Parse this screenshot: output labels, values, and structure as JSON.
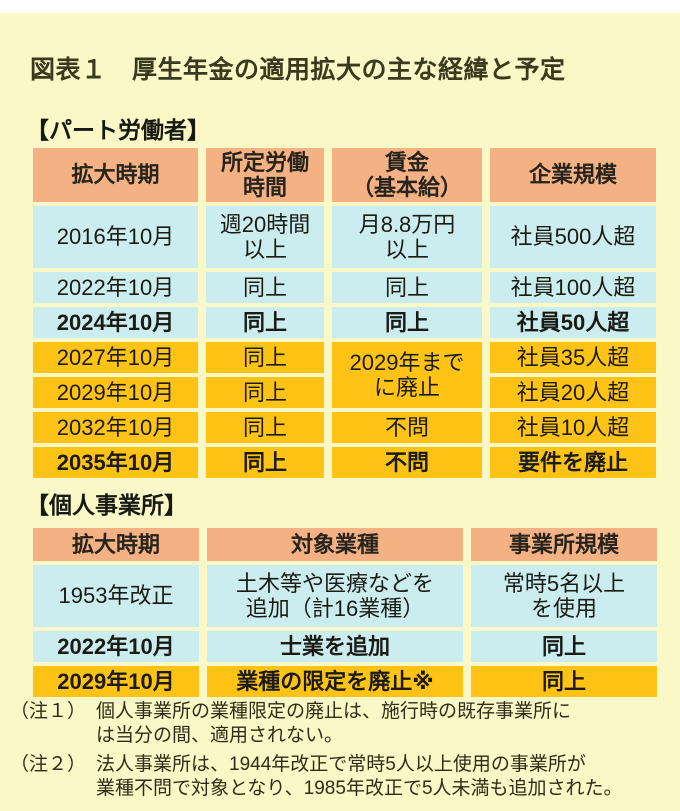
{
  "title": "図表１　厚生年金の適用拡大の主な経緯と予定",
  "chart_data": [
    {
      "type": "table",
      "title": "【パート労働者】",
      "columns": [
        "拡大時期",
        "所定労働\n時間",
        "賃金\n（基本給）",
        "企業規模"
      ],
      "rows": [
        [
          "2016年10月",
          "週20時間\n以上",
          "月8.8万円\n以上",
          "社員500人超"
        ],
        [
          "2022年10月",
          "同上",
          "同上",
          "社員100人超"
        ],
        [
          "2024年10月",
          "同上",
          "同上",
          "社員50人超"
        ],
        [
          "2027年10月",
          "同上",
          "2029年まで\nに廃止",
          "社員35人超"
        ],
        [
          "2029年10月",
          "同上",
          "社員20人超"
        ],
        [
          "2032年10月",
          "同上",
          "不問",
          "社員10人超"
        ],
        [
          "2035年10月",
          "同上",
          "不問",
          "要件を廃止"
        ]
      ],
      "row_colors": [
        "blue",
        "blue",
        "blue",
        "gold",
        "gold",
        "gold",
        "gold"
      ],
      "bold_rows": [
        "2024年10月",
        "2035年10月"
      ],
      "merged_cell_note": "賃金欄の「2029年までに廃止」は2027年・2029年の2行にまたがる"
    },
    {
      "type": "table",
      "title": "【個人事業所】",
      "columns": [
        "拡大時期",
        "対象業種",
        "事業所規模"
      ],
      "rows": [
        [
          "1953年改正",
          "土木等や医療などを\n追加（計16業種）",
          "常時5名以上\nを使用"
        ],
        [
          "2022年10月",
          "士業を追加",
          "同上"
        ],
        [
          "2029年10月",
          "業種の限定を廃止※",
          "同上"
        ]
      ],
      "row_colors": [
        "blue",
        "blue",
        "gold"
      ],
      "bold_rows": [
        "2022年10月",
        "2029年10月"
      ]
    }
  ],
  "notes": [
    {
      "label": "（注１）",
      "text": "個人事業所の業種限定の廃止は、施行時の既存事業所に\nは当分の間、適用されない。"
    },
    {
      "label": "（注２）",
      "text": "法人事業所は、1944年改正で常時5人以上使用の事業所が\n業種不問で対象となり、1985年改正で5人未満も追加された。"
    }
  ],
  "colors": {
    "page_bg": "#FAF8C6",
    "header_peach": "#F4B183",
    "row_blue": "#CBEDEF",
    "row_gold": "#FFC316"
  }
}
